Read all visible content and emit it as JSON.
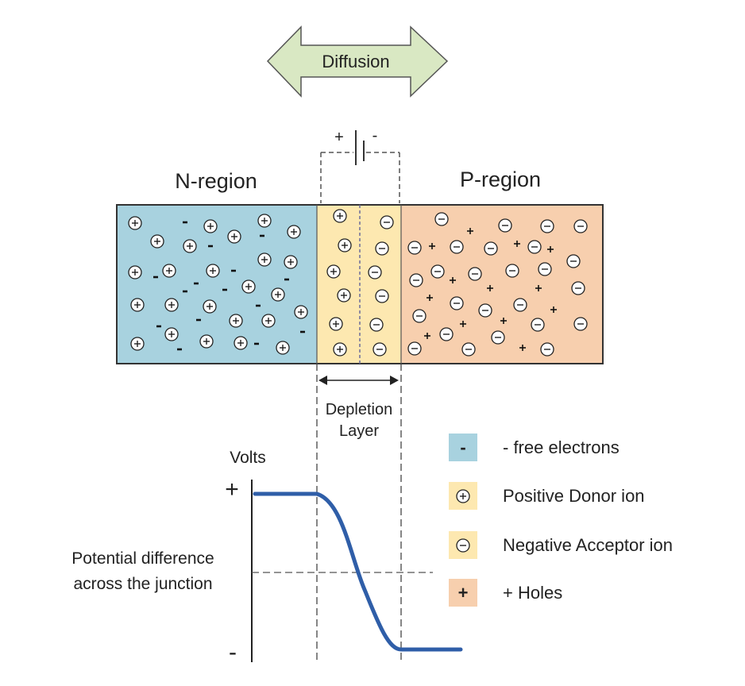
{
  "diffusion": {
    "label": "Diffusion",
    "fill": "#d9e8c3"
  },
  "battery": {
    "plus": "+",
    "minus": "-"
  },
  "regions": {
    "n": {
      "label": "N-region",
      "fill": "#a8d2df"
    },
    "depletion": {
      "fill": "#fde8b0"
    },
    "p": {
      "label": "P-region",
      "fill": "#f7cfae"
    }
  },
  "depletion_label": {
    "line1": "Depletion",
    "line2": "Layer"
  },
  "graph": {
    "ylabel": "Volts",
    "plus": "+",
    "minus": "-",
    "caption_line1": "Potential difference",
    "caption_line2": "across the junction",
    "curve_color": "#2f5ea8"
  },
  "legend": [
    {
      "swatch": "-",
      "label": "- free electrons",
      "fill": "#a8d2df",
      "kind": "text"
    },
    {
      "swatch": "+",
      "label": "Positive Donor ion",
      "fill": "#fde8b0",
      "kind": "circle"
    },
    {
      "swatch": "-",
      "label": "Negative Acceptor ion",
      "fill": "#fde8b0",
      "kind": "circle"
    },
    {
      "swatch": "+",
      "label": "+ Holes",
      "fill": "#f7cfae",
      "kind": "text"
    }
  ]
}
